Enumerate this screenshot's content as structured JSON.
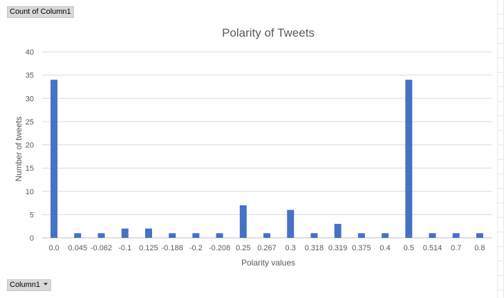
{
  "field_buttons": {
    "values_field": "Count of Column1",
    "axis_field": "Column1"
  },
  "chart_data": {
    "type": "bar",
    "title": "Polarity of Tweets",
    "xlabel": "Polarity values",
    "ylabel": "Number of tweets",
    "ylim": [
      0,
      40
    ],
    "yticks": [
      0,
      5,
      10,
      15,
      20,
      25,
      30,
      35,
      40
    ],
    "grid": true,
    "legend": "none",
    "bar_color": "#4472c4",
    "categories": [
      "0.0",
      "0.045",
      "-0.062",
      "-0.1",
      "0.125",
      "-0.188",
      "-0.2",
      "-0.208",
      "0.25",
      "0.267",
      "0.3",
      "0.318",
      "0.319",
      "0.375",
      "0.4",
      "0.5",
      "0.514",
      "0.7",
      "0.8"
    ],
    "values": [
      34,
      1,
      1,
      2,
      2,
      1,
      1,
      1,
      7,
      1,
      6,
      1,
      3,
      1,
      1,
      34,
      1,
      1,
      1
    ]
  }
}
